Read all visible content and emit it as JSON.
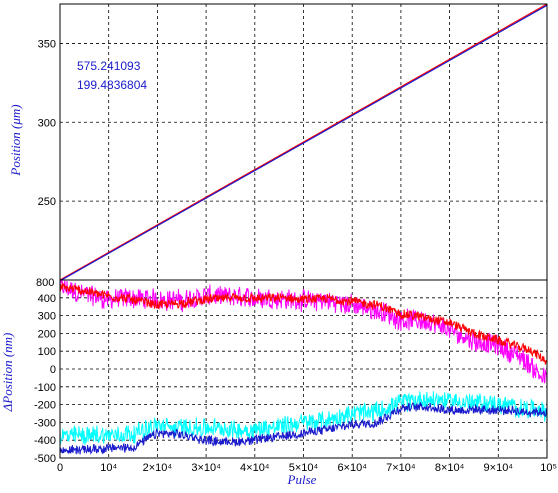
{
  "chart_data": [
    {
      "type": "line",
      "title": "",
      "xlabel": "",
      "ylabel": "Position (μm)",
      "xlim": [
        0,
        100000
      ],
      "ylim": [
        200,
        375
      ],
      "yticks": [
        250,
        300,
        350
      ],
      "ytick_labels": [
        "250",
        "300",
        "350"
      ],
      "bottom_label": "800",
      "grid": true,
      "annotations": [
        "575.241093",
        "199.4836804"
      ],
      "series": [
        {
          "color": "#ff0000",
          "points": [
            [
              0,
              200
            ],
            [
              100000,
              375
            ]
          ]
        },
        {
          "color": "#1a1acc",
          "points": [
            [
              0,
              199.48
            ],
            [
              100000,
              374.2
            ]
          ]
        }
      ]
    },
    {
      "type": "line",
      "title": "",
      "xlabel": "Pulse",
      "ylabel": "ΔPosition (nm)",
      "xlim": [
        0,
        100000
      ],
      "ylim": [
        -500,
        500
      ],
      "yticks": [
        -500,
        -400,
        -300,
        -200,
        -100,
        0,
        100,
        200,
        300,
        400
      ],
      "ytick_labels": [
        "-500",
        "-400",
        "-300",
        "-200",
        "-100",
        "0",
        "100",
        "200",
        "300",
        "400"
      ],
      "xticks": [
        0,
        10000,
        20000,
        30000,
        40000,
        50000,
        60000,
        70000,
        80000,
        90000,
        100000
      ],
      "xtick_labels": [
        "0",
        "10⁴",
        "2×10⁴",
        "3×10⁴",
        "4×10⁴",
        "5×10⁴",
        "6×10⁴",
        "7×10⁴",
        "8×10⁴",
        "9×10⁴",
        "10⁵"
      ],
      "grid": true,
      "series": [
        {
          "color": "#ff00ff",
          "noise": 55,
          "x": [
            0,
            5000,
            10000,
            15000,
            20000,
            25000,
            30000,
            35000,
            40000,
            45000,
            50000,
            55000,
            60000,
            65000,
            70000,
            75000,
            80000,
            85000,
            90000,
            95000,
            97000,
            100000
          ],
          "values": [
            460,
            420,
            390,
            400,
            390,
            385,
            410,
            405,
            400,
            395,
            385,
            380,
            360,
            330,
            280,
            270,
            220,
            160,
            130,
            60,
            10,
            -60
          ]
        },
        {
          "color": "#ff0000",
          "noise": 25,
          "x": [
            0,
            5000,
            10000,
            15000,
            20000,
            25000,
            30000,
            35000,
            40000,
            45000,
            50000,
            55000,
            60000,
            65000,
            70000,
            75000,
            80000,
            85000,
            90000,
            95000,
            97000,
            100000
          ],
          "values": [
            460,
            440,
            410,
            390,
            360,
            370,
            390,
            400,
            395,
            400,
            390,
            395,
            380,
            360,
            310,
            290,
            260,
            200,
            160,
            120,
            100,
            40
          ]
        },
        {
          "color": "#00ffff",
          "noise": 50,
          "x": [
            0,
            5000,
            10000,
            15000,
            20000,
            25000,
            30000,
            35000,
            40000,
            45000,
            50000,
            55000,
            60000,
            65000,
            70000,
            75000,
            80000,
            85000,
            90000,
            95000,
            100000
          ],
          "values": [
            -380,
            -370,
            -370,
            -360,
            -320,
            -330,
            -330,
            -340,
            -340,
            -320,
            -300,
            -290,
            -250,
            -240,
            -190,
            -170,
            -180,
            -190,
            -200,
            -220,
            -240
          ]
        },
        {
          "color": "#1a1acc",
          "noise": 25,
          "x": [
            0,
            5000,
            10000,
            15000,
            20000,
            25000,
            30000,
            35000,
            40000,
            45000,
            50000,
            55000,
            60000,
            65000,
            70000,
            75000,
            80000,
            85000,
            90000,
            95000,
            100000
          ],
          "values": [
            -460,
            -450,
            -445,
            -440,
            -360,
            -370,
            -400,
            -410,
            -400,
            -380,
            -360,
            -340,
            -310,
            -300,
            -220,
            -210,
            -230,
            -230,
            -230,
            -240,
            -240
          ]
        }
      ]
    }
  ]
}
